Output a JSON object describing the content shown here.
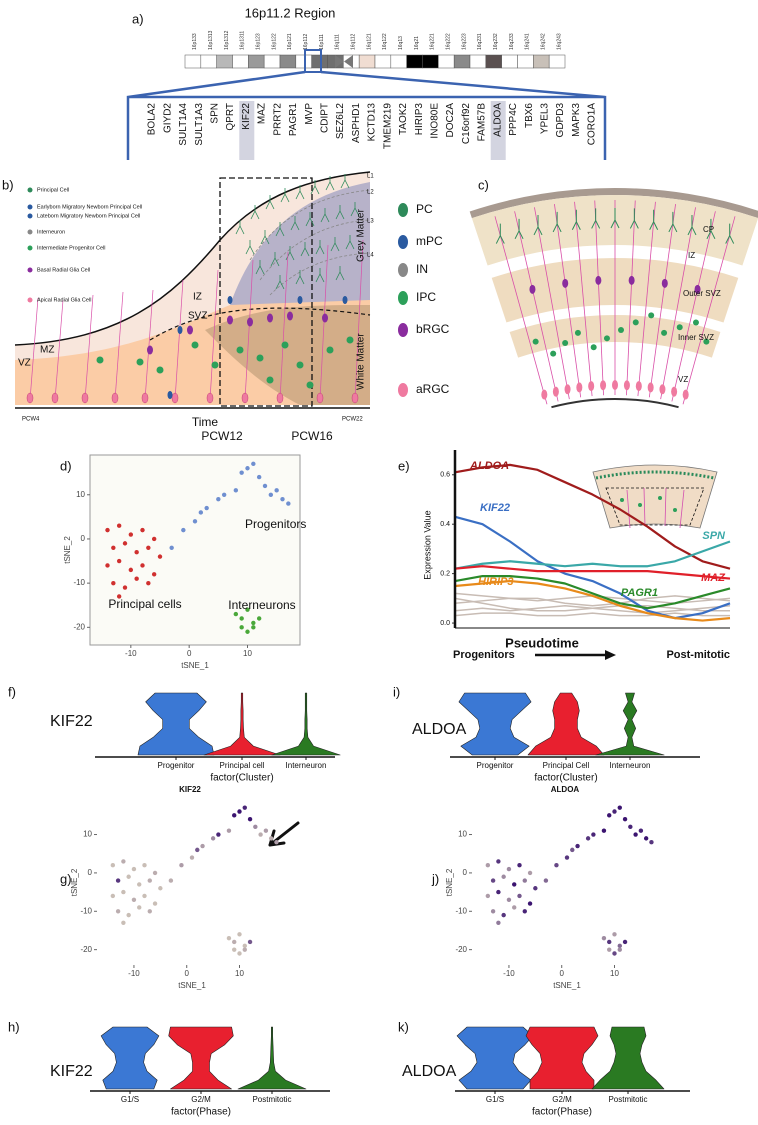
{
  "a": {
    "label": "a)",
    "title": "16p11.2 Region",
    "bands": [
      "16p133",
      "16p1313",
      "16p1312",
      "16p1311",
      "16p123",
      "16p122",
      "16p121",
      "16p112",
      "16p111",
      "16q111",
      "16q112",
      "16q121",
      "16q122",
      "16q13",
      "16q21",
      "16q221",
      "16q222",
      "16q223",
      "16q231",
      "16q232",
      "16q233",
      "16q241",
      "16q242",
      "16q243"
    ],
    "band_colors": [
      "#ffffff",
      "#ffffff",
      "#b8b8b8",
      "#ffffff",
      "#9a9a9a",
      "#ffffff",
      "#8a8a8a",
      "#ffffff",
      "#6f6f6f",
      "#6f6f6f",
      "#ffffff",
      "#f0ddd2",
      "#ffffff",
      "#ffffff",
      "#000000",
      "#000000",
      "#ffffff",
      "#8a8a8a",
      "#ffffff",
      "#5a5050",
      "#ffffff",
      "#ffffff",
      "#c8c0b8",
      "#ffffff"
    ],
    "genes": [
      "BOLA2",
      "GIYD2",
      "SULT1A4",
      "SULT1A3",
      "SPN",
      "QPRT",
      "KIF22",
      "MAZ",
      "PRRT2",
      "PAGR1",
      "MVP",
      "CDIPT",
      "SEZ6L2",
      "ASPHD1",
      "KCTD13",
      "TMEM219",
      "TAOK2",
      "HIRIP3",
      "INO80E",
      "DOC2A",
      "C16orf92",
      "FAM57B",
      "ALDOA",
      "PPP4C",
      "TBX6",
      "YPEL3",
      "GDPD3",
      "MAPK3",
      "CORO1A"
    ],
    "highlight": [
      6,
      22
    ]
  },
  "b": {
    "label": "b)",
    "legend": [
      "Principal Cell",
      "Earlyborn Migratory Newborn Principal Cell",
      "Lateborn Migratory Newborn Principal Cell",
      "Interneuron",
      "Intermediate Progenitor Cell",
      "Basal Radial Glia Cell",
      "Apical Radial Glia Cell"
    ],
    "zones": [
      "VZ",
      "MZ",
      "IZ",
      "SVZ"
    ],
    "matter": [
      "Grey Matter",
      "White Matter"
    ],
    "layers": [
      "L1",
      "L2",
      "L3",
      "L4"
    ],
    "time": "Time",
    "marks": [
      "PCW4",
      "PCW12",
      "PCW16",
      "PCW22"
    ],
    "cell_types": [
      "PC",
      "mPC",
      "IN",
      "IPC",
      "bRGC",
      "aRGC"
    ]
  },
  "c": {
    "label": "c)",
    "zones": [
      "CP",
      "IZ",
      "Outer SVZ",
      "Inner SVZ",
      "VZ"
    ]
  },
  "tsne": {
    "type": "scatter",
    "xlabel": "tSNE_1",
    "ylabel": "tSNE_2",
    "xlim": [
      -17,
      19
    ],
    "ylim": [
      -24,
      19
    ],
    "xticks": [
      -10,
      0,
      10
    ],
    "yticks": [
      -20,
      -10,
      0,
      10
    ],
    "low_color": "#c9beb6",
    "high_color": "#3b1470",
    "series": [
      {
        "name": "Progenitors",
        "color": "#6f8fd0",
        "x": [
          -3,
          -1,
          1,
          2,
          3,
          5,
          6,
          8,
          9,
          10,
          11,
          12,
          13,
          14,
          15,
          16,
          17
        ],
        "y": [
          -2,
          2,
          4,
          6,
          7,
          9,
          10,
          11,
          15,
          16,
          17,
          14,
          12,
          10,
          11,
          9,
          8
        ],
        "kif22": [
          0.1,
          0.2,
          0.1,
          0.6,
          0.2,
          0.3,
          0.9,
          0.2,
          1,
          1,
          0.9,
          1,
          0.3,
          0.1,
          0.2,
          0.1,
          0.2
        ],
        "aldoa": [
          0.5,
          0.7,
          0.8,
          0.6,
          0.9,
          0.8,
          0.9,
          1,
          1,
          0.9,
          1,
          1,
          0.9,
          1,
          0.9,
          1,
          0.8
        ]
      },
      {
        "name": "Principal cells",
        "color": "#d0302f",
        "x": [
          -14,
          -12,
          -10,
          -8,
          -6,
          -13,
          -11,
          -9,
          -7,
          -5,
          -14,
          -12,
          -10,
          -8,
          -6,
          -13,
          -11,
          -9,
          -7,
          -12
        ],
        "y": [
          2,
          3,
          1,
          2,
          0,
          -2,
          -1,
          -3,
          -2,
          -4,
          -6,
          -5,
          -7,
          -6,
          -8,
          -10,
          -11,
          -9,
          -10,
          -13
        ],
        "kif22": [
          0,
          0.1,
          0,
          0,
          0.1,
          0.8,
          0,
          0,
          0.1,
          0,
          0,
          0,
          0.1,
          0,
          0,
          0.1,
          0,
          0,
          0.1,
          0
        ],
        "aldoa": [
          0.2,
          0.8,
          0.3,
          0.9,
          0.2,
          0.7,
          0.3,
          1,
          0.4,
          0.8,
          0.2,
          0.9,
          0.3,
          0.6,
          1,
          0.3,
          0.8,
          0.2,
          0.9,
          0.4
        ]
      },
      {
        "name": "Interneurons",
        "color": "#4aa83a",
        "x": [
          8,
          9,
          10,
          11,
          12,
          9,
          10,
          11
        ],
        "y": [
          -17,
          -18,
          -16,
          -19,
          -18,
          -20,
          -21,
          -20
        ],
        "kif22": [
          0,
          0.1,
          0,
          0,
          0.6,
          0,
          0,
          0.1
        ],
        "aldoa": [
          0.3,
          0.8,
          0.2,
          0.5,
          0.9,
          0.2,
          0.7,
          0.3
        ]
      }
    ]
  },
  "d": {
    "label": "d)"
  },
  "g": {
    "label": "g)",
    "title": "KIF22"
  },
  "j": {
    "label": "j)",
    "title": "ALDOA"
  },
  "e": {
    "label": "e)",
    "type": "line",
    "ylabel": "Expression Value",
    "xlabel": "Pseudotime",
    "start": "Progenitors",
    "end": "Post-mitotic",
    "x": [
      0,
      1,
      2,
      3,
      4,
      5,
      6,
      7,
      8,
      9,
      10
    ],
    "xlim": [
      0,
      10
    ],
    "ylim": [
      -0.02,
      0.68
    ],
    "yticks": [
      {
        "value": 0,
        "label": "0.0"
      },
      {
        "value": 0.2,
        "label": "0.2"
      },
      {
        "value": 0.4,
        "label": "0.4"
      },
      {
        "value": 0.6,
        "label": "0.6"
      }
    ],
    "series": [
      {
        "name": "ALDOA",
        "color": "#a01c1c",
        "values": [
          0.61,
          0.63,
          0.64,
          0.62,
          0.57,
          0.52,
          0.46,
          0.39,
          0.31,
          0.25,
          0.22
        ]
      },
      {
        "name": "KIF22",
        "color": "#3a6fc4",
        "values": [
          0.43,
          0.4,
          0.33,
          0.25,
          0.2,
          0.17,
          0.12,
          0.05,
          0.02,
          0.04,
          0.08
        ]
      },
      {
        "name": "SPN",
        "color": "#3aa8a8",
        "values": [
          0.22,
          0.24,
          0.25,
          0.24,
          0.23,
          0.24,
          0.23,
          0.23,
          0.25,
          0.29,
          0.33
        ]
      },
      {
        "name": "MAZ",
        "color": "#e0202a",
        "values": [
          0.22,
          0.23,
          0.22,
          0.21,
          0.21,
          0.21,
          0.21,
          0.21,
          0.2,
          0.19,
          0.18
        ]
      },
      {
        "name": "HIRIP3",
        "color": "#e88a1a",
        "values": [
          0.15,
          0.16,
          0.17,
          0.16,
          0.14,
          0.11,
          0.07,
          0.04,
          0.02,
          0.01,
          0.02
        ]
      },
      {
        "name": "PAGR1",
        "color": "#2a8a2a",
        "values": [
          0.17,
          0.19,
          0.19,
          0.18,
          0.16,
          0.12,
          0.08,
          0.06,
          0.08,
          0.11,
          0.14
        ]
      }
    ],
    "background": [
      {
        "color": "#c8bcb4",
        "values": [
          0.12,
          0.11,
          0.1,
          0.09,
          0.1,
          0.11,
          0.1,
          0.09,
          0.08,
          0.09,
          0.1
        ]
      },
      {
        "color": "#c8bcb4",
        "values": [
          0.08,
          0.09,
          0.1,
          0.1,
          0.08,
          0.07,
          0.08,
          0.1,
          0.11,
          0.1,
          0.09
        ]
      },
      {
        "color": "#c8bcb4",
        "values": [
          0.05,
          0.06,
          0.05,
          0.06,
          0.07,
          0.06,
          0.05,
          0.04,
          0.05,
          0.06,
          0.07
        ]
      },
      {
        "color": "#c8bcb4",
        "values": [
          0.1,
          0.08,
          0.06,
          0.05,
          0.05,
          0.06,
          0.07,
          0.07,
          0.06,
          0.05,
          0.05
        ]
      },
      {
        "color": "#c8bcb4",
        "values": [
          0.03,
          0.04,
          0.04,
          0.03,
          0.03,
          0.04,
          0.03,
          0.03,
          0.04,
          0.03,
          0.03
        ]
      }
    ]
  },
  "f": {
    "label": "f)",
    "type": "violin",
    "gene": "KIF22",
    "xlabel": "factor(Cluster)",
    "categories": [
      "Progenitor",
      "Principal cell",
      "Interneuron"
    ],
    "colors": [
      "#3b78d4",
      "#e8202f",
      "#2a7a22"
    ],
    "profiles": [
      [
        1,
        0.95,
        0.6,
        0.35,
        0.35,
        0.6,
        0.8,
        0.55
      ],
      [
        1,
        0.3,
        0.06,
        0.04,
        0.03,
        0.03,
        0.02,
        0.02
      ],
      [
        0.9,
        0.2,
        0.05,
        0.03,
        0.03,
        0.02,
        0.02,
        0.02
      ]
    ]
  },
  "i": {
    "label": "i)",
    "type": "violin",
    "gene": "ALDOA",
    "xlabel": "factor(Cluster)",
    "categories": [
      "Progenitor",
      "Principal Cell",
      "Interneuron"
    ],
    "colors": [
      "#3b78d4",
      "#e8202f",
      "#2a7a22"
    ],
    "profiles": [
      [
        0.6,
        0.9,
        0.5,
        0.4,
        0.45,
        0.7,
        0.95,
        0.8
      ],
      [
        1,
        0.8,
        0.4,
        0.3,
        0.3,
        0.35,
        0.3,
        0.15
      ],
      [
        0.9,
        0.1,
        0.05,
        0.15,
        0.05,
        0.18,
        0.05,
        0.12
      ]
    ]
  },
  "h": {
    "label": "h)",
    "type": "violin",
    "gene": "KIF22",
    "xlabel": "factor(Phase)",
    "categories": [
      "G1/S",
      "G2/M",
      "Postmitotic"
    ],
    "colors": [
      "#3b78d4",
      "#e8202f",
      "#2a7a22"
    ],
    "profiles": [
      [
        0.7,
        0.8,
        0.5,
        0.4,
        0.45,
        0.7,
        0.85,
        0.5
      ],
      [
        0.9,
        0.5,
        0.25,
        0.25,
        0.3,
        0.7,
        0.95,
        0.9
      ],
      [
        1,
        0.4,
        0.1,
        0.05,
        0.04,
        0.03,
        0.02,
        0.02
      ]
    ]
  },
  "k": {
    "label": "k)",
    "type": "violin",
    "gene": "ALDOA",
    "xlabel": "factor(Phase)",
    "categories": [
      "G1/S",
      "G2/M",
      "Postmitotic"
    ],
    "colors": [
      "#3b78d4",
      "#e8202f",
      "#2a7a22"
    ],
    "profiles": [
      [
        0.7,
        0.9,
        0.6,
        0.45,
        0.5,
        0.75,
        0.95,
        0.7
      ],
      [
        0.8,
        0.8,
        0.6,
        0.5,
        0.55,
        0.75,
        0.9,
        0.8
      ],
      [
        0.9,
        0.7,
        0.45,
        0.35,
        0.3,
        0.35,
        0.45,
        0.4
      ]
    ]
  }
}
